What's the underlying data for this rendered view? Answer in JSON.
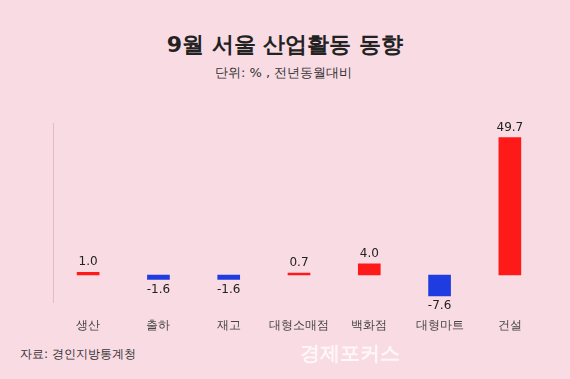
{
  "chart_data": {
    "type": "bar",
    "title": "9월 서울 산업활동 동향",
    "subtitle": "단위: % , 전년동월대비",
    "source": "자료: 경인지방통계청",
    "watermark": "경제포커스",
    "categories": [
      "생산",
      "출하",
      "재고",
      "대형소매점",
      "백화점",
      "대형마트",
      "건설"
    ],
    "values": [
      1.0,
      -1.6,
      -1.6,
      0.7,
      4.0,
      -7.6,
      49.7
    ],
    "value_labels": [
      "1.0",
      "-1.6",
      "-1.6",
      "0.7",
      "4.0",
      "-7.6",
      "49.7"
    ],
    "colors": [
      "#ff1a1a",
      "#1f3ce0",
      "#1f3ce0",
      "#ff1a1a",
      "#ff1a1a",
      "#1f3ce0",
      "#ff1a1a"
    ],
    "ylim": [
      -10,
      55
    ],
    "yticks": [],
    "grid": false,
    "data_labels": true,
    "tick_labels": "x"
  }
}
